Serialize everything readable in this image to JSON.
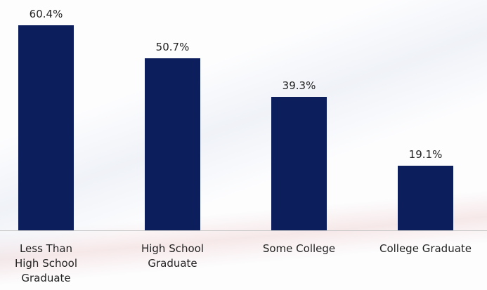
{
  "chart_data": {
    "type": "bar",
    "categories": [
      "Less Than\nHigh School\nGraduate",
      "High School\nGraduate",
      "Some College",
      "College Graduate"
    ],
    "values": [
      60.4,
      50.7,
      39.3,
      19.1
    ],
    "value_labels": [
      "60.4%",
      "50.7%",
      "39.3%",
      "19.1%"
    ],
    "color": "#0c1f5c"
  }
}
